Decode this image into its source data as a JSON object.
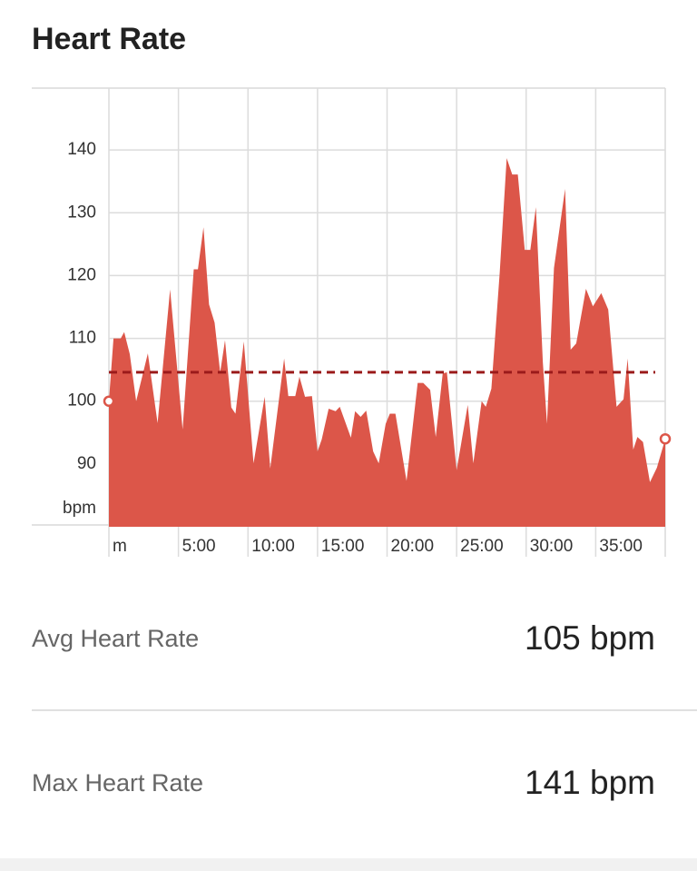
{
  "chart_data": {
    "type": "area",
    "title": "Heart Rate",
    "y_label": "bpm",
    "color": "#dc5649",
    "avg_line": 104.6,
    "avg_color": "#9b1b1b",
    "xlim": [
      0,
      40
    ],
    "ylim": [
      80,
      150
    ],
    "yticks": [
      90,
      100,
      110,
      120,
      130,
      140
    ],
    "xticks": [
      {
        "value": 0,
        "label": "m"
      },
      {
        "value": 5,
        "label": "5:00"
      },
      {
        "value": 10,
        "label": "10:00"
      },
      {
        "value": 15,
        "label": "15:00"
      },
      {
        "value": 20,
        "label": "20:00"
      },
      {
        "value": 25,
        "label": "25:00"
      },
      {
        "value": 30,
        "label": "30:00"
      },
      {
        "value": 35,
        "label": "35:00"
      }
    ],
    "grid": true,
    "x": [
      0,
      0.33,
      0.85,
      1.1,
      1.5,
      1.96,
      2.8,
      3.5,
      4.4,
      5.3,
      6.1,
      6.4,
      6.8,
      7.2,
      7.6,
      8.0,
      8.35,
      8.8,
      9.1,
      9.7,
      10.4,
      11.2,
      11.6,
      12.6,
      12.9,
      13.4,
      13.7,
      14.1,
      14.6,
      15.0,
      15.3,
      15.8,
      16.3,
      16.6,
      17.4,
      17.7,
      18.1,
      18.5,
      19.0,
      19.4,
      19.9,
      20.2,
      20.6,
      21.4,
      22.2,
      22.6,
      23.1,
      23.5,
      24.0,
      24.3,
      25.0,
      25.8,
      26.2,
      26.8,
      27.1,
      27.5,
      28.1,
      28.6,
      29.0,
      29.4,
      29.9,
      30.3,
      30.7,
      31.2,
      31.5,
      32.0,
      32.8,
      33.2,
      33.6,
      34.3,
      34.8,
      35.4,
      35.9,
      36.5,
      37.0,
      37.3,
      37.7,
      38.0,
      38.4,
      38.9,
      39.4,
      40.0
    ],
    "values": [
      100,
      110,
      110,
      111,
      107.5,
      100,
      107.6,
      96.5,
      117.8,
      95.5,
      121,
      121,
      127.7,
      115.4,
      112.5,
      104.6,
      109.7,
      99,
      98,
      109.5,
      90.1,
      100.7,
      89.3,
      106.8,
      100.8,
      100.8,
      103.9,
      100.7,
      100.8,
      92,
      93.9,
      98.8,
      98.4,
      99.1,
      94.2,
      98.4,
      97.5,
      98.5,
      92,
      90.1,
      96.4,
      98,
      98,
      87.3,
      102.9,
      102.9,
      101.8,
      94.3,
      104.4,
      104.6,
      89,
      99.4,
      90.1,
      100,
      99.1,
      102,
      120.5,
      138.7,
      136.1,
      136.1,
      124.1,
      124.1,
      130.9,
      106.2,
      96.4,
      121.2,
      133.8,
      108.2,
      109.2,
      117.9,
      115.1,
      117.2,
      114.6,
      99.1,
      100.3,
      106.8,
      92.3,
      94.3,
      93.5,
      87.1,
      89.4,
      94
    ]
  },
  "stats": [
    {
      "label": "Avg Heart Rate",
      "value": "105 bpm"
    },
    {
      "label": "Max Heart Rate",
      "value": "141 bpm"
    }
  ]
}
